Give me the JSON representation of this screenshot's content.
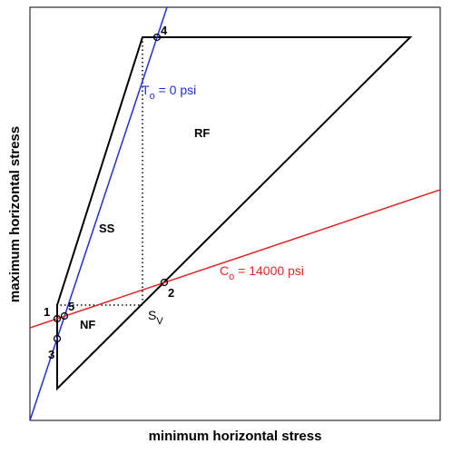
{
  "axes": {
    "xlabel": "minimum horizontal stress",
    "ylabel": "maximum horizontal stress"
  },
  "regions": {
    "rf": "RF",
    "ss": "SS",
    "nf": "NF"
  },
  "sv_label": {
    "main": "S",
    "sub": "V"
  },
  "to_line": {
    "main": "T",
    "sub": "o",
    "rest": " = 0 psi",
    "color": "#1f2fd6"
  },
  "co_line": {
    "main": "C",
    "sub": "o",
    "rest": " = 14000 psi",
    "color": "#e62424"
  },
  "points": [
    "1",
    "2",
    "3",
    "4",
    "5"
  ],
  "colors": {
    "polygon": "#000000",
    "dotted": "#000000"
  }
}
